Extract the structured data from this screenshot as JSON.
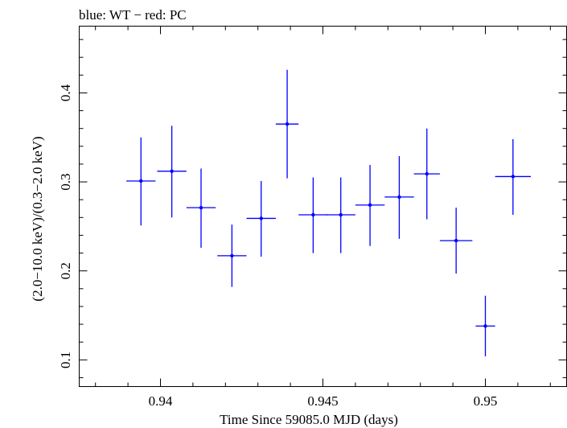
{
  "chart_data": {
    "type": "scatter",
    "title": "blue: WT − red: PC",
    "xlabel": "Time Since 59085.0 MJD (days)",
    "ylabel": "(2.0−10.0 keV)/(0.3−2.0 keV)",
    "xlim": [
      0.9375,
      0.9525
    ],
    "ylim": [
      0.07,
      0.475
    ],
    "x_ticks": [
      0.94,
      0.945,
      0.95
    ],
    "x_tick_labels": [
      "0.94",
      "0.945",
      "0.95"
    ],
    "y_ticks": [
      0.1,
      0.2,
      0.3,
      0.4
    ],
    "y_tick_labels": [
      "0.1",
      "0.2",
      "0.3",
      "0.4"
    ],
    "grid": false,
    "series": [
      {
        "name": "WT",
        "color": "#0000ff",
        "points": [
          {
            "x": 0.9394,
            "xerr": 0.00045,
            "y": 0.301,
            "yerr_lo": 0.05,
            "yerr_hi": 0.049
          },
          {
            "x": 0.94035,
            "xerr": 0.00045,
            "y": 0.312,
            "yerr_lo": 0.052,
            "yerr_hi": 0.051
          },
          {
            "x": 0.94125,
            "xerr": 0.00045,
            "y": 0.271,
            "yerr_lo": 0.045,
            "yerr_hi": 0.044
          },
          {
            "x": 0.9422,
            "xerr": 0.00045,
            "y": 0.217,
            "yerr_lo": 0.035,
            "yerr_hi": 0.035
          },
          {
            "x": 0.9431,
            "xerr": 0.00045,
            "y": 0.259,
            "yerr_lo": 0.043,
            "yerr_hi": 0.042
          },
          {
            "x": 0.9439,
            "xerr": 0.00035,
            "y": 0.365,
            "yerr_lo": 0.061,
            "yerr_hi": 0.061
          },
          {
            "x": 0.9447,
            "xerr": 0.00045,
            "y": 0.263,
            "yerr_lo": 0.043,
            "yerr_hi": 0.042
          },
          {
            "x": 0.94555,
            "xerr": 0.00045,
            "y": 0.263,
            "yerr_lo": 0.043,
            "yerr_hi": 0.042
          },
          {
            "x": 0.94645,
            "xerr": 0.00045,
            "y": 0.274,
            "yerr_lo": 0.046,
            "yerr_hi": 0.045
          },
          {
            "x": 0.94735,
            "xerr": 0.00045,
            "y": 0.283,
            "yerr_lo": 0.047,
            "yerr_hi": 0.046
          },
          {
            "x": 0.9482,
            "xerr": 0.0004,
            "y": 0.309,
            "yerr_lo": 0.051,
            "yerr_hi": 0.051
          },
          {
            "x": 0.9491,
            "xerr": 0.0005,
            "y": 0.234,
            "yerr_lo": 0.037,
            "yerr_hi": 0.037
          },
          {
            "x": 0.95,
            "xerr": 0.0003,
            "y": 0.138,
            "yerr_lo": 0.034,
            "yerr_hi": 0.034
          },
          {
            "x": 0.95085,
            "xerr": 0.00055,
            "y": 0.306,
            "yerr_lo": 0.043,
            "yerr_hi": 0.042
          }
        ]
      }
    ]
  }
}
